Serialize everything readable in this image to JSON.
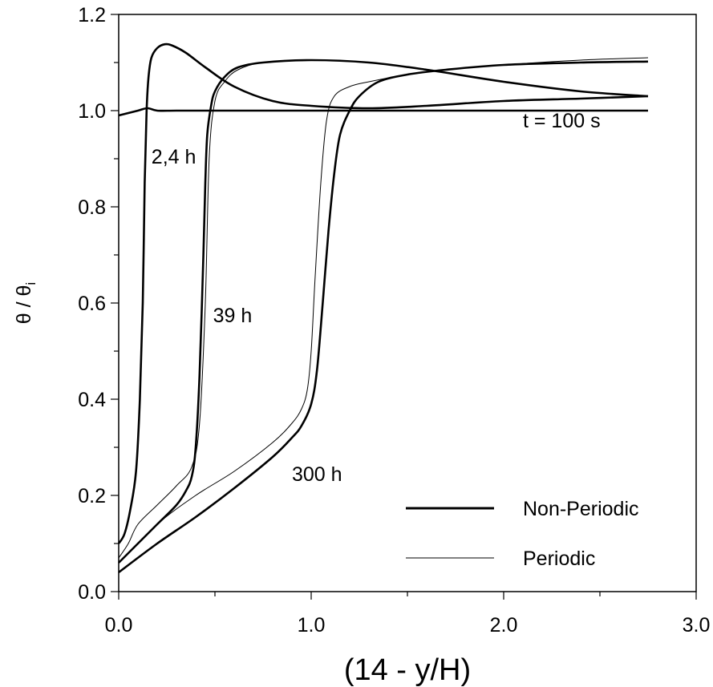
{
  "chart_data": {
    "type": "line",
    "xlabel": "(14 - y/H)",
    "ylabel": "θ / θ",
    "ylabel_sub": "i",
    "xlim": [
      0,
      3
    ],
    "ylim": [
      0,
      1.2
    ],
    "x_ticks": [
      0,
      1,
      2,
      3
    ],
    "x_tick_labels": [
      "0.0",
      "1.0",
      "2.0",
      "3.0"
    ],
    "y_ticks": [
      0,
      0.2,
      0.4,
      0.6,
      0.8,
      1.0,
      1.2
    ],
    "y_tick_labels": [
      "0.0",
      "0.2",
      "0.4",
      "0.6",
      "0.8",
      "1.0",
      "1.2"
    ],
    "legend": [
      {
        "label": "Non-Periodic",
        "style": "thick"
      },
      {
        "label": "Periodic",
        "style": "thin"
      }
    ],
    "annotations": [
      {
        "text": "t = 100 s",
        "x": 2.1,
        "y": 0.98
      },
      {
        "text": "2,4 h",
        "x": 0.17,
        "y": 0.905
      },
      {
        "text": "39 h",
        "x": 0.49,
        "y": 0.575
      },
      {
        "text": "300 h",
        "x": 0.9,
        "y": 0.245
      }
    ],
    "series": [
      {
        "style": "thick",
        "x": [
          0,
          0.05,
          0.1,
          0.15,
          0.2,
          0.3,
          0.5,
          1.0,
          1.5,
          2.0,
          2.75
        ],
        "y": [
          0.99,
          0.995,
          1.0,
          1.005,
          1.0,
          1.0,
          1.0,
          1.0,
          1.0,
          1.0,
          1.0
        ]
      },
      {
        "style": "thick",
        "x": [
          0,
          0.03,
          0.06,
          0.09,
          0.11,
          0.125,
          0.135,
          0.145,
          0.155,
          0.17,
          0.2,
          0.24,
          0.28,
          0.35,
          0.45,
          0.6,
          0.8,
          1.0,
          1.3,
          1.6,
          2.0,
          2.4,
          2.75
        ],
        "y": [
          0.1,
          0.12,
          0.17,
          0.25,
          0.4,
          0.6,
          0.85,
          1.0,
          1.07,
          1.11,
          1.13,
          1.138,
          1.135,
          1.12,
          1.09,
          1.05,
          1.02,
          1.01,
          1.005,
          1.01,
          1.02,
          1.025,
          1.03
        ]
      },
      {
        "style": "thick",
        "x": [
          0,
          0.1,
          0.2,
          0.3,
          0.35,
          0.38,
          0.4,
          0.42,
          0.44,
          0.45,
          0.46,
          0.48,
          0.5,
          0.55,
          0.62,
          0.75,
          1.0,
          1.3,
          1.6,
          2.0,
          2.4,
          2.75
        ],
        "y": [
          0.06,
          0.1,
          0.14,
          0.18,
          0.21,
          0.24,
          0.3,
          0.45,
          0.7,
          0.85,
          0.95,
          1.01,
          1.04,
          1.07,
          1.09,
          1.1,
          1.105,
          1.1,
          1.085,
          1.06,
          1.04,
          1.03
        ]
      },
      {
        "style": "thick",
        "x": [
          0,
          0.2,
          0.4,
          0.6,
          0.8,
          0.9,
          0.95,
          1.0,
          1.03,
          1.06,
          1.09,
          1.12,
          1.15,
          1.2,
          1.25,
          1.35,
          1.5,
          1.7,
          2.0,
          2.4,
          2.75
        ],
        "y": [
          0.04,
          0.1,
          0.155,
          0.215,
          0.28,
          0.32,
          0.345,
          0.39,
          0.46,
          0.6,
          0.75,
          0.87,
          0.95,
          1.0,
          1.03,
          1.06,
          1.075,
          1.085,
          1.095,
          1.1,
          1.102
        ]
      },
      {
        "style": "thin",
        "x": [
          0,
          0.05,
          0.1,
          0.2,
          0.3,
          0.38,
          0.42,
          0.45,
          0.47,
          0.5,
          0.55,
          0.62,
          0.75,
          1.0,
          1.3,
          1.6,
          2.0,
          2.4,
          2.75
        ],
        "y": [
          0.07,
          0.1,
          0.14,
          0.18,
          0.22,
          0.26,
          0.35,
          0.6,
          0.9,
          1.02,
          1.06,
          1.085,
          1.1,
          1.105,
          1.1,
          1.085,
          1.06,
          1.04,
          1.03
        ]
      },
      {
        "style": "thin",
        "x": [
          0,
          0.2,
          0.4,
          0.6,
          0.8,
          0.9,
          0.95,
          0.98,
          1.0,
          1.02,
          1.05,
          1.08,
          1.12,
          1.2,
          1.3,
          1.5,
          1.7,
          2.0,
          2.4,
          2.75
        ],
        "y": [
          0.06,
          0.14,
          0.2,
          0.25,
          0.31,
          0.35,
          0.38,
          0.42,
          0.5,
          0.65,
          0.85,
          0.98,
          1.03,
          1.05,
          1.06,
          1.075,
          1.085,
          1.095,
          1.105,
          1.11
        ]
      }
    ]
  }
}
